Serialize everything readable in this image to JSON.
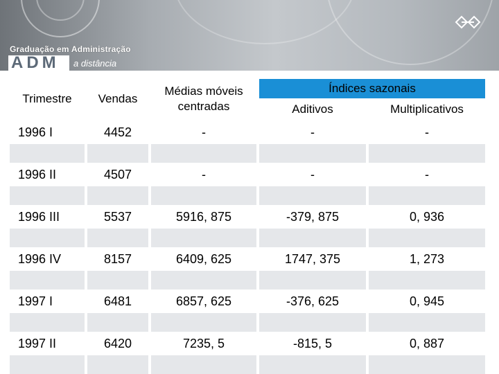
{
  "banner": {
    "program": "Graduação em Administração",
    "logo": "ADM",
    "subtitle": "a distância",
    "corner_logo_icon": "ufsc-emblem-icon"
  },
  "table": {
    "headers": {
      "trimestre": "Trimestre",
      "vendas": "Vendas",
      "medias": "Médias móveis centradas",
      "indices": "Índices sazonais",
      "aditivos": "Aditivos",
      "multiplicativos": "Multiplicativos"
    },
    "rows": [
      {
        "trimestre": "1996 I",
        "vendas": "4452",
        "media": "-",
        "aditivo": "-",
        "multiplicativo": "-"
      },
      {
        "trimestre": "1996 II",
        "vendas": "4507",
        "media": "-",
        "aditivo": "-",
        "multiplicativo": "-"
      },
      {
        "trimestre": "1996 III",
        "vendas": "5537",
        "media": "5916, 875",
        "aditivo": "-379, 875",
        "multiplicativo": "0, 936"
      },
      {
        "trimestre": "1996 IV",
        "vendas": "8157",
        "media": "6409, 625",
        "aditivo": "1747, 375",
        "multiplicativo": "1, 273"
      },
      {
        "trimestre": "1997 I",
        "vendas": "6481",
        "media": "6857, 625",
        "aditivo": "-376, 625",
        "multiplicativo": "0, 945"
      },
      {
        "trimestre": "1997 II",
        "vendas": "6420",
        "media": "7235, 5",
        "aditivo": "-815, 5",
        "multiplicativo": "0, 887"
      }
    ],
    "colors": {
      "header_accent": "#1a8fd6",
      "band_grey": "#e5e7ea"
    }
  }
}
